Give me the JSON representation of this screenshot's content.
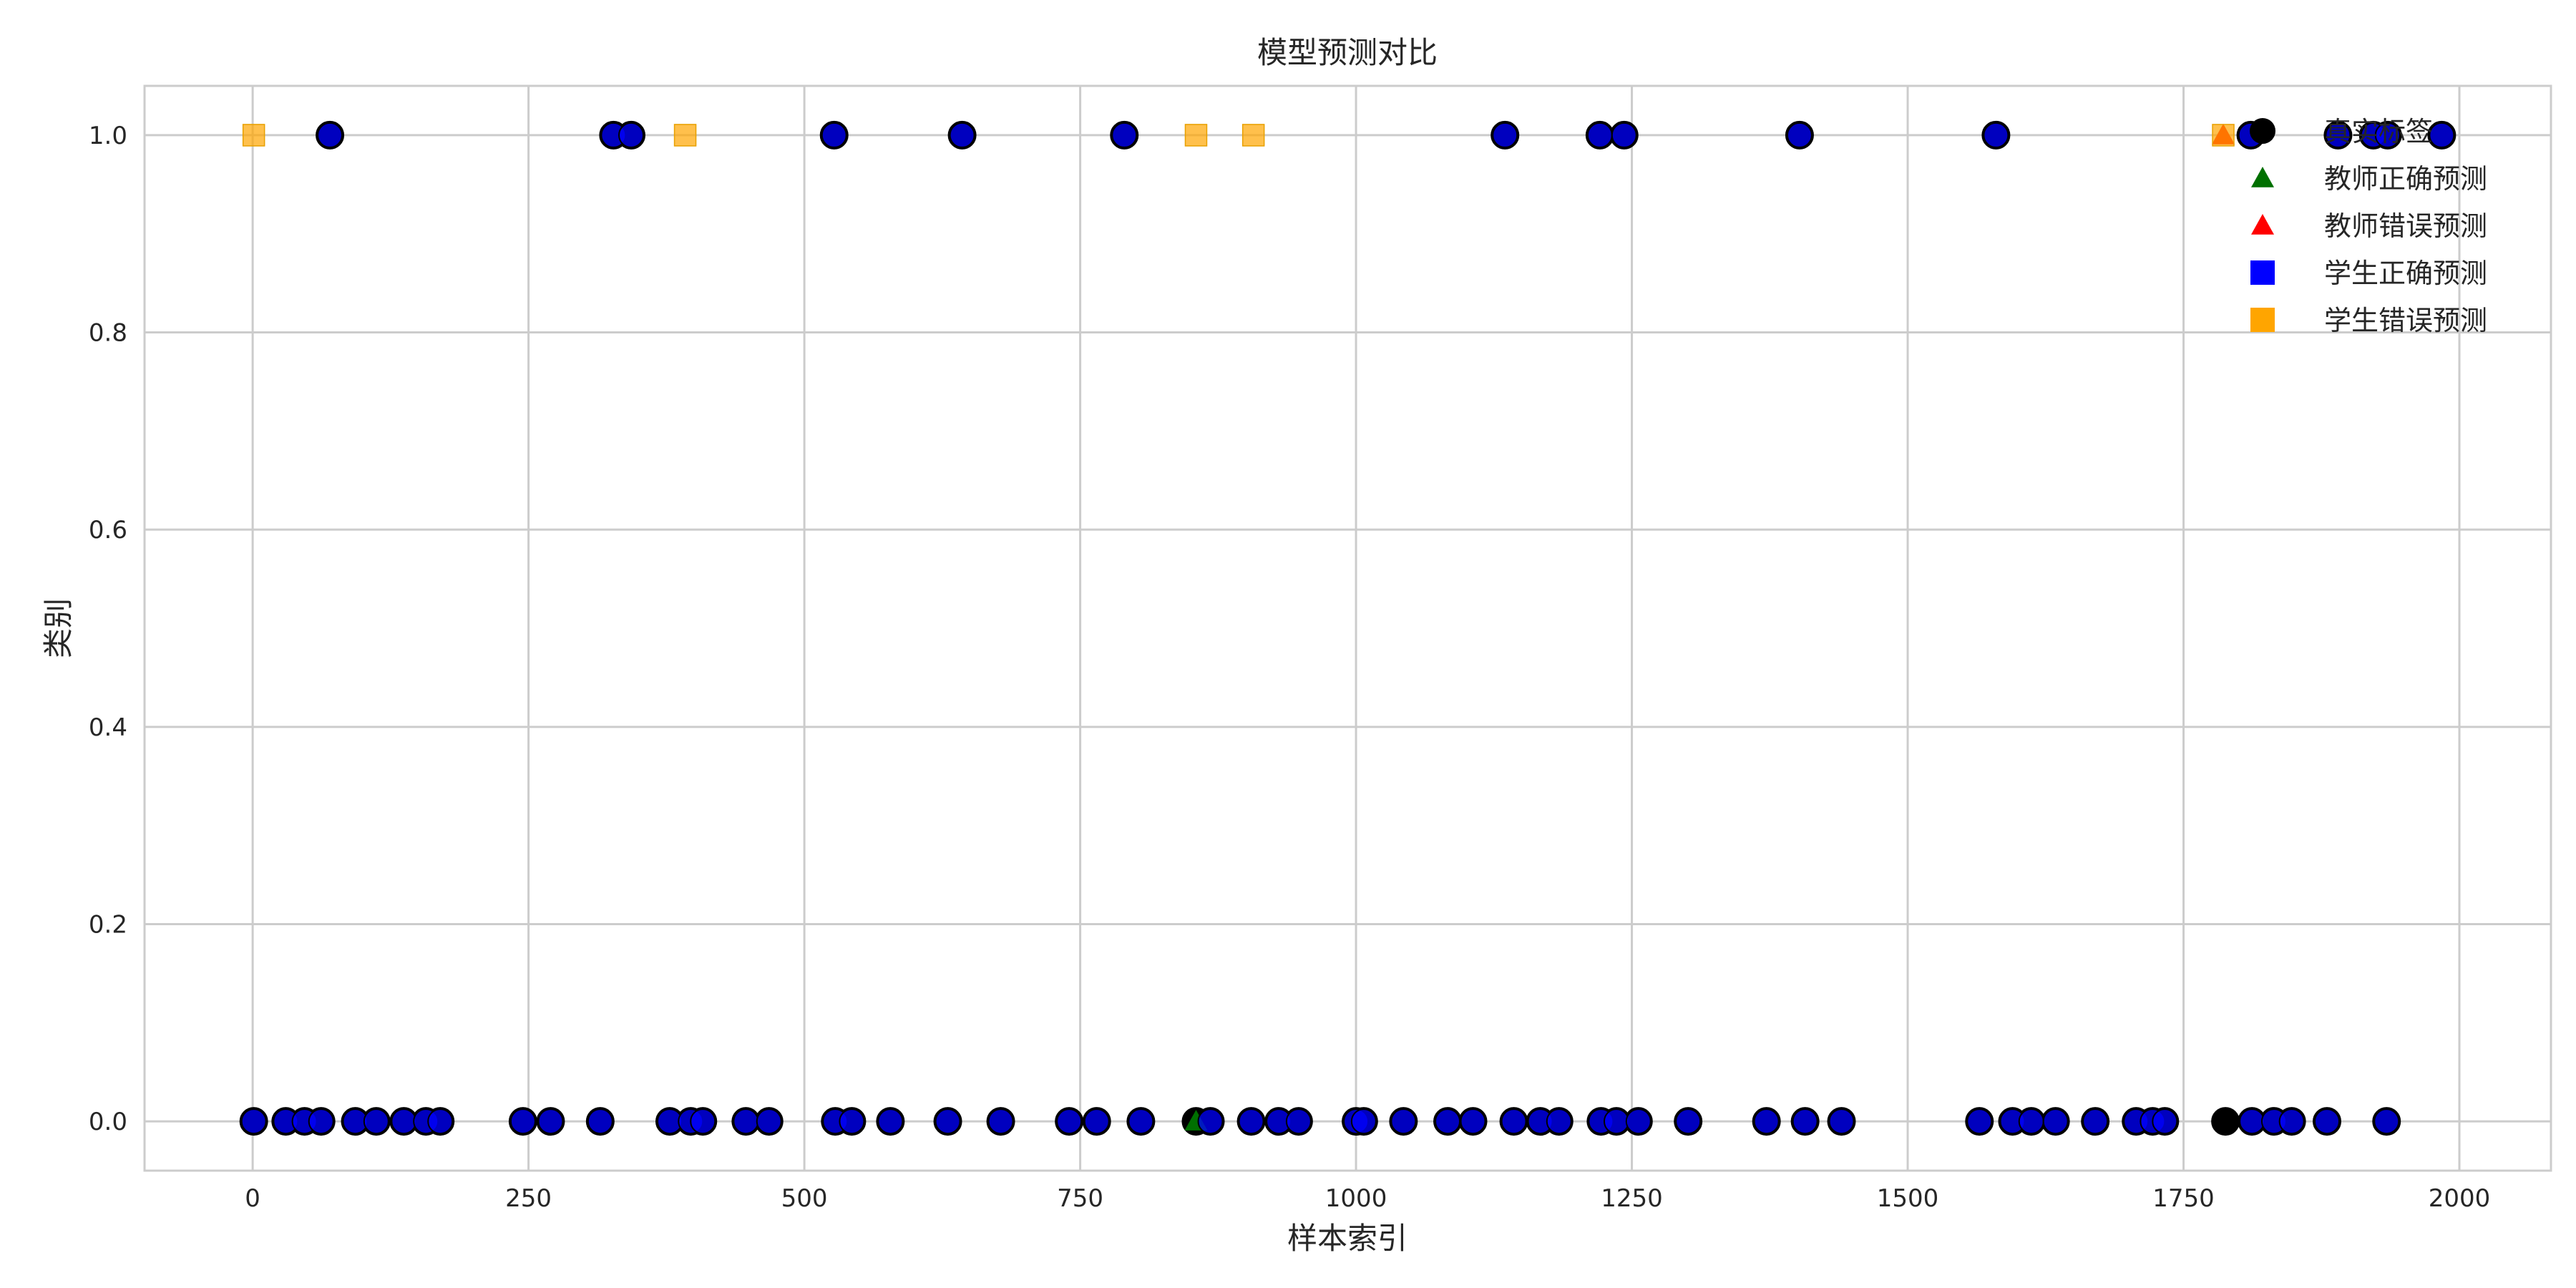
{
  "chart_data": {
    "type": "scatter",
    "title": "模型预测对比",
    "xlabel": "样本索引",
    "ylabel": "类别",
    "xlim": [
      -98,
      2083
    ],
    "ylim": [
      -0.05,
      1.05
    ],
    "x_ticks": [
      0,
      250,
      500,
      750,
      1000,
      1250,
      1500,
      1750,
      2000
    ],
    "x_tick_labels": [
      "0",
      "250",
      "500",
      "750",
      "1000",
      "1250",
      "1500",
      "1750",
      "2000"
    ],
    "y_ticks": [
      0.0,
      0.2,
      0.4,
      0.6,
      0.8,
      1.0
    ],
    "y_tick_labels": [
      "0.0",
      "0.2",
      "0.4",
      "0.6",
      "0.8",
      "1.0"
    ],
    "grid": true,
    "legend_position": "top-right",
    "series": [
      {
        "name": "真实标签",
        "marker": "circle",
        "color": "#000000",
        "points": [
          [
            70,
            1
          ],
          [
            327,
            1
          ],
          [
            343,
            1
          ],
          [
            527,
            1
          ],
          [
            643,
            1
          ],
          [
            790,
            1
          ],
          [
            1135,
            1
          ],
          [
            1221,
            1
          ],
          [
            1243,
            1
          ],
          [
            1402,
            1
          ],
          [
            1580,
            1
          ],
          [
            1811,
            1
          ],
          [
            1890,
            1
          ],
          [
            1922,
            1
          ],
          [
            1935,
            1
          ],
          [
            1984,
            1
          ],
          [
            1,
            0
          ],
          [
            30,
            0
          ],
          [
            47,
            0
          ],
          [
            62,
            0
          ],
          [
            93,
            0
          ],
          [
            112,
            0
          ],
          [
            137,
            0
          ],
          [
            157,
            0
          ],
          [
            170,
            0
          ],
          [
            245,
            0
          ],
          [
            270,
            0
          ],
          [
            315,
            0
          ],
          [
            378,
            0
          ],
          [
            397,
            0
          ],
          [
            408,
            0
          ],
          [
            447,
            0
          ],
          [
            468,
            0
          ],
          [
            528,
            0
          ],
          [
            543,
            0
          ],
          [
            578,
            0
          ],
          [
            630,
            0
          ],
          [
            678,
            0
          ],
          [
            740,
            0
          ],
          [
            765,
            0
          ],
          [
            805,
            0
          ],
          [
            855,
            0
          ],
          [
            868,
            0
          ],
          [
            905,
            0
          ],
          [
            930,
            0
          ],
          [
            948,
            0
          ],
          [
            1000,
            0
          ],
          [
            1007,
            0
          ],
          [
            1043,
            0
          ],
          [
            1083,
            0
          ],
          [
            1106,
            0
          ],
          [
            1143,
            0
          ],
          [
            1167,
            0
          ],
          [
            1184,
            0
          ],
          [
            1222,
            0
          ],
          [
            1236,
            0
          ],
          [
            1256,
            0
          ],
          [
            1301,
            0
          ],
          [
            1372,
            0
          ],
          [
            1407,
            0
          ],
          [
            1440,
            0
          ],
          [
            1565,
            0
          ],
          [
            1595,
            0
          ],
          [
            1612,
            0
          ],
          [
            1634,
            0
          ],
          [
            1670,
            0
          ],
          [
            1707,
            0
          ],
          [
            1722,
            0
          ],
          [
            1733,
            0
          ],
          [
            1788,
            0
          ],
          [
            1812,
            0
          ],
          [
            1832,
            0
          ],
          [
            1848,
            0
          ],
          [
            1880,
            0
          ],
          [
            1934,
            0
          ]
        ]
      },
      {
        "name": "教师正确预测",
        "marker": "triangle",
        "color": "#007000",
        "points": [
          [
            855,
            0
          ]
        ]
      },
      {
        "name": "教师错误预测",
        "marker": "triangle",
        "color": "#ff0000",
        "points": [
          [
            1786,
            1
          ]
        ]
      },
      {
        "name": "学生正确预测",
        "marker": "square",
        "color": "#0000ff",
        "points": [
          [
            70,
            1
          ],
          [
            327,
            1
          ],
          [
            343,
            1
          ],
          [
            527,
            1
          ],
          [
            643,
            1
          ],
          [
            790,
            1
          ],
          [
            1135,
            1
          ],
          [
            1221,
            1
          ],
          [
            1243,
            1
          ],
          [
            1402,
            1
          ],
          [
            1580,
            1
          ],
          [
            1811,
            1
          ],
          [
            1890,
            1
          ],
          [
            1922,
            1
          ],
          [
            1935,
            1
          ],
          [
            1984,
            1
          ],
          [
            1,
            0
          ],
          [
            30,
            0
          ],
          [
            47,
            0
          ],
          [
            62,
            0
          ],
          [
            93,
            0
          ],
          [
            112,
            0
          ],
          [
            137,
            0
          ],
          [
            157,
            0
          ],
          [
            170,
            0
          ],
          [
            245,
            0
          ],
          [
            270,
            0
          ],
          [
            315,
            0
          ],
          [
            378,
            0
          ],
          [
            397,
            0
          ],
          [
            408,
            0
          ],
          [
            447,
            0
          ],
          [
            468,
            0
          ],
          [
            528,
            0
          ],
          [
            543,
            0
          ],
          [
            578,
            0
          ],
          [
            630,
            0
          ],
          [
            678,
            0
          ],
          [
            740,
            0
          ],
          [
            765,
            0
          ],
          [
            805,
            0
          ],
          [
            868,
            0
          ],
          [
            905,
            0
          ],
          [
            930,
            0
          ],
          [
            948,
            0
          ],
          [
            1000,
            0
          ],
          [
            1007,
            0
          ],
          [
            1043,
            0
          ],
          [
            1083,
            0
          ],
          [
            1106,
            0
          ],
          [
            1143,
            0
          ],
          [
            1167,
            0
          ],
          [
            1184,
            0
          ],
          [
            1222,
            0
          ],
          [
            1236,
            0
          ],
          [
            1256,
            0
          ],
          [
            1301,
            0
          ],
          [
            1372,
            0
          ],
          [
            1407,
            0
          ],
          [
            1440,
            0
          ],
          [
            1565,
            0
          ],
          [
            1595,
            0
          ],
          [
            1612,
            0
          ],
          [
            1634,
            0
          ],
          [
            1670,
            0
          ],
          [
            1707,
            0
          ],
          [
            1722,
            0
          ],
          [
            1733,
            0
          ],
          [
            1812,
            0
          ],
          [
            1832,
            0
          ],
          [
            1848,
            0
          ],
          [
            1880,
            0
          ],
          [
            1934,
            0
          ]
        ]
      },
      {
        "name": "学生错误预测",
        "marker": "square",
        "color": "#ffa500",
        "points": [
          [
            1,
            1
          ],
          [
            392,
            1
          ],
          [
            855,
            1
          ],
          [
            907,
            1
          ],
          [
            1786,
            1
          ]
        ]
      }
    ]
  }
}
